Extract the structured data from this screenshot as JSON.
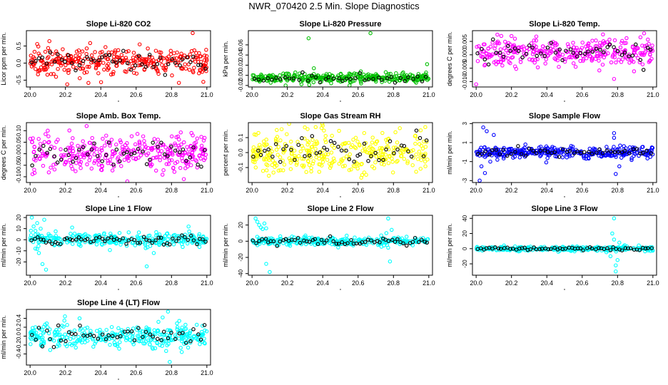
{
  "page": {
    "title": "NWR_070420  2.5 Min. Slope Diagnostics"
  },
  "legend_colors": {
    "black": "#000000"
  },
  "chart_data": [
    {
      "type": "scatter",
      "title": "Slope Li-820 CO2",
      "xlabel": "",
      "ylabel": "Licor ppm per min.",
      "xlim": [
        20.0,
        21.0
      ],
      "ylim": [
        -0.7,
        0.95
      ],
      "xticks": [
        "20.0",
        "20.2",
        "20.4",
        "20.6",
        "20.8",
        "21.0"
      ],
      "yticks": [
        -0.5,
        0.0,
        0.5
      ],
      "ytick_labels": [
        "-0.5",
        "0.0",
        "0.5"
      ],
      "color": "#ff0000",
      "center": 0.05,
      "spread": 0.18,
      "n_main": 330,
      "n_black": 48,
      "outliers": [
        [
          20.04,
          0.56
        ],
        [
          20.92,
          0.88
        ],
        [
          20.33,
          -0.58
        ],
        [
          20.21,
          -0.62
        ],
        [
          20.98,
          -0.55
        ],
        [
          20.62,
          0.55
        ]
      ]
    },
    {
      "type": "scatter",
      "title": "Slope Li-820 Pressure",
      "xlabel": "",
      "ylabel": "kPa per min.",
      "xlim": [
        20.0,
        21.0
      ],
      "ylim": [
        -0.023,
        0.088
      ],
      "xticks": [
        "20.0",
        "20.2",
        "20.4",
        "20.6",
        "20.8",
        "21.0"
      ],
      "yticks": [
        -0.02,
        0.0,
        0.02,
        0.04,
        0.06
      ],
      "ytick_labels": [
        "-0.02",
        "0.00",
        "0.02",
        "0.04",
        "0.06"
      ],
      "color": "#00c000",
      "center": -0.005,
      "spread": 0.005,
      "n_main": 330,
      "n_black": 40,
      "outliers": [
        [
          20.32,
          0.073
        ],
        [
          20.67,
          0.083
        ],
        [
          20.99,
          0.022
        ],
        [
          20.19,
          -0.02
        ],
        [
          20.35,
          0.014
        ]
      ]
    },
    {
      "type": "scatter",
      "title": "Slope Li-820 Temp.",
      "xlabel": "",
      "ylabel": "degrees C per min.",
      "xlim": [
        20.0,
        21.0
      ],
      "ylim": [
        -0.012,
        0.009
      ],
      "xticks": [
        "20.0",
        "20.2",
        "20.4",
        "20.6",
        "20.8",
        "21.0"
      ],
      "yticks": [
        -0.01,
        -0.005,
        0.0,
        0.005
      ],
      "ytick_labels": [
        "-0.010",
        "-0.005",
        "0.000",
        "0.005"
      ],
      "color": "#ff00ff",
      "center": 0.001,
      "spread": 0.0025,
      "n_main": 330,
      "n_black": 48,
      "outliers": [
        [
          20.0,
          -0.011
        ],
        [
          20.95,
          0.008
        ],
        [
          20.2,
          0.007
        ],
        [
          20.78,
          -0.009
        ],
        [
          20.12,
          0.0075
        ]
      ]
    },
    {
      "type": "scatter",
      "title": "Slope Amb. Box Temp.",
      "xlabel": "",
      "ylabel": "degrees C per min.",
      "xlim": [
        20.0,
        21.0
      ],
      "ylim": [
        -0.125,
        0.135
      ],
      "xticks": [
        "20.0",
        "20.2",
        "20.4",
        "20.6",
        "20.8",
        "21.0"
      ],
      "yticks": [
        -0.1,
        -0.05,
        0.0,
        0.05,
        0.1
      ],
      "ytick_labels": [
        "-0.10",
        "-0.05",
        "0.00",
        "0.05",
        "0.10"
      ],
      "color": "#ff00ff",
      "center": 0.0,
      "spread": 0.038,
      "n_main": 330,
      "n_black": 48,
      "outliers": [
        [
          20.32,
          0.12
        ],
        [
          20.55,
          -0.12
        ],
        [
          20.1,
          0.1
        ],
        [
          20.87,
          -0.11
        ]
      ]
    },
    {
      "type": "scatter",
      "title": "Slope Gas Stream RH",
      "xlabel": "",
      "ylabel": "percent per min.",
      "xlim": [
        20.0,
        21.0
      ],
      "ylim": [
        -0.2,
        0.2
      ],
      "xticks": [
        "20.0",
        "20.2",
        "20.4",
        "20.6",
        "20.8",
        "21.0"
      ],
      "yticks": [
        -0.1,
        0.0,
        0.1
      ],
      "ytick_labels": [
        "-0.1",
        "0.0",
        "0.1"
      ],
      "color": "#ffff00",
      "center": 0.0,
      "spread": 0.07,
      "n_main": 340,
      "n_black": 48,
      "outliers": [
        [
          20.36,
          0.17
        ],
        [
          20.4,
          0.18
        ],
        [
          20.98,
          0.17
        ]
      ]
    },
    {
      "type": "scatter",
      "title": "Slope Sample Flow",
      "xlabel": "",
      "ylabel": "ml/min per min.",
      "xlim": [
        20.0,
        21.0
      ],
      "ylim": [
        -3.2,
        3.1
      ],
      "xticks": [
        "20.0",
        "20.2",
        "20.4",
        "20.6",
        "20.8",
        "21.0"
      ],
      "yticks": [
        -3,
        -1,
        1,
        3
      ],
      "ytick_labels": [
        "-3",
        "-1",
        "1",
        "3"
      ],
      "color": "#0000ff",
      "center": 0.0,
      "spread": 0.3,
      "n_main": 330,
      "n_black": 48,
      "outliers": [
        [
          20.04,
          2.6
        ],
        [
          20.06,
          2.2
        ],
        [
          20.03,
          -1.5
        ],
        [
          20.05,
          -2.2
        ],
        [
          20.02,
          -3.0
        ],
        [
          20.08,
          -1.0
        ],
        [
          20.1,
          1.8
        ],
        [
          20.12,
          -0.8
        ],
        [
          20.78,
          2.0
        ],
        [
          20.79,
          -2.3
        ],
        [
          20.78,
          1.5
        ],
        [
          20.81,
          -1.5
        ]
      ]
    },
    {
      "type": "scatter",
      "title": "Slope Line 1 Flow",
      "xlabel": "",
      "ylabel": "ml/min per min.",
      "xlim": [
        20.0,
        21.0
      ],
      "ylim": [
        -32,
        22
      ],
      "xticks": [
        "20.0",
        "20.2",
        "20.4",
        "20.6",
        "20.8",
        "21.0"
      ],
      "yticks": [
        -20,
        -10,
        0,
        10,
        20
      ],
      "ytick_labels": [
        "-20",
        "-10",
        "0",
        "10",
        "20"
      ],
      "color": "#00ffff",
      "center": 0.0,
      "spread": 3.0,
      "n_main": 300,
      "n_black": 60,
      "outliers": [
        [
          20.01,
          20
        ],
        [
          20.02,
          12
        ],
        [
          20.03,
          8
        ],
        [
          20.04,
          15
        ],
        [
          20.05,
          -12
        ],
        [
          20.06,
          10
        ],
        [
          20.07,
          -22
        ],
        [
          20.09,
          -27
        ],
        [
          20.08,
          18
        ],
        [
          20.03,
          -8
        ],
        [
          20.66,
          -24
        ],
        [
          20.7,
          -12
        ]
      ]
    },
    {
      "type": "scatter",
      "title": "Slope Line 2 Flow",
      "xlabel": "",
      "ylabel": "ml/min per min.",
      "xlim": [
        20.0,
        21.0
      ],
      "ylim": [
        -42,
        32
      ],
      "xticks": [
        "20.0",
        "20.2",
        "20.4",
        "20.6",
        "20.8",
        "21.0"
      ],
      "yticks": [
        -40,
        -20,
        0,
        20
      ],
      "ytick_labels": [
        "-40",
        "-20",
        "0",
        "20"
      ],
      "color": "#00ffff",
      "center": 0.0,
      "spread": 2.5,
      "n_main": 300,
      "n_black": 60,
      "outliers": [
        [
          20.02,
          28
        ],
        [
          20.03,
          24
        ],
        [
          20.04,
          20
        ],
        [
          20.05,
          17
        ],
        [
          20.06,
          15
        ],
        [
          20.07,
          22
        ],
        [
          20.08,
          16
        ],
        [
          20.1,
          -3
        ],
        [
          20.1,
          -38
        ],
        [
          20.08,
          -28
        ],
        [
          20.77,
          28
        ],
        [
          20.76,
          10
        ],
        [
          20.78,
          -25
        ],
        [
          20.77,
          -8
        ],
        [
          20.79,
          14
        ]
      ]
    },
    {
      "type": "scatter",
      "title": "Slope Line 3 Flow",
      "xlabel": "",
      "ylabel": "ml/min per min.",
      "xlim": [
        20.0,
        21.0
      ],
      "ylim": [
        -35,
        44
      ],
      "xticks": [
        "20.0",
        "20.2",
        "20.4",
        "20.6",
        "20.8",
        "21.0"
      ],
      "yticks": [
        -20,
        0,
        20,
        40
      ],
      "ytick_labels": [
        "-20",
        "0",
        "20",
        "40"
      ],
      "color": "#00ffff",
      "center": 0.0,
      "spread": 1.5,
      "n_main": 300,
      "n_black": 60,
      "outliers": [
        [
          20.78,
          40
        ],
        [
          20.79,
          -30
        ],
        [
          20.77,
          20
        ],
        [
          20.8,
          -15
        ],
        [
          20.78,
          12
        ],
        [
          20.79,
          -22
        ],
        [
          20.81,
          8
        ],
        [
          20.76,
          -10
        ]
      ]
    },
    {
      "type": "scatter",
      "title": "Slope Line 4 (LT) Flow",
      "xlabel": "",
      "ylabel": "ml/min per min.",
      "xlim": [
        20.0,
        21.0
      ],
      "ylim": [
        -0.65,
        0.6
      ],
      "xticks": [
        "20.0",
        "20.2",
        "20.4",
        "20.6",
        "20.8",
        "21.0"
      ],
      "yticks": [
        -0.4,
        -0.2,
        0.0,
        0.2,
        0.4
      ],
      "ytick_labels": [
        "-0.4",
        "-0.2",
        "0.0",
        "0.2",
        "0.4"
      ],
      "color": "#00ffff",
      "center": 0.0,
      "spread": 0.13,
      "n_main": 330,
      "n_black": 48,
      "outliers": [
        [
          20.78,
          0.55
        ],
        [
          20.79,
          -0.58
        ],
        [
          20.28,
          0.4
        ],
        [
          20.75,
          0.42
        ]
      ]
    }
  ]
}
